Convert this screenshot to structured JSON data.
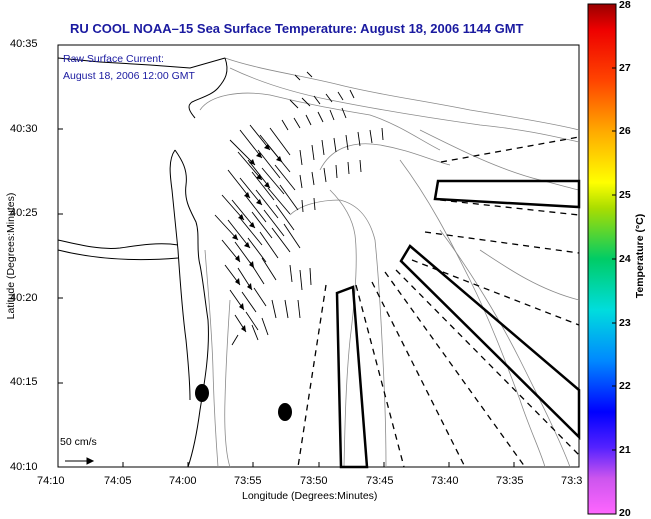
{
  "title": "RU COOL  NOAA–15  Sea Surface Temperature:  August 18, 2006 1144 GMT",
  "current_legend": {
    "line1": "Raw Surface Current:",
    "line2": "August 18, 2006 12:00 GMT",
    "scale_label": "50 cm/s"
  },
  "axes": {
    "xlabel": "Longitude (Degrees:Minutes)",
    "ylabel": "Latitude (Degrees:Minutes)",
    "x_ticks": [
      "74:10",
      "74:05",
      "74:00",
      "73:55",
      "73:50",
      "73:45",
      "73:40",
      "73:35",
      "73:3"
    ],
    "y_ticks": [
      "40:35",
      "40:30",
      "40:25",
      "40:20",
      "40:15",
      "40:10"
    ]
  },
  "colorbar": {
    "label": "Temperature (°C)",
    "ticks": [
      "28",
      "27",
      "26",
      "25",
      "24",
      "23",
      "22",
      "21",
      "20"
    ],
    "range": [
      20,
      28
    ]
  },
  "colors": {
    "title": "#1a1aa0",
    "coast": "#000000",
    "bathymetry": "#888888"
  }
}
